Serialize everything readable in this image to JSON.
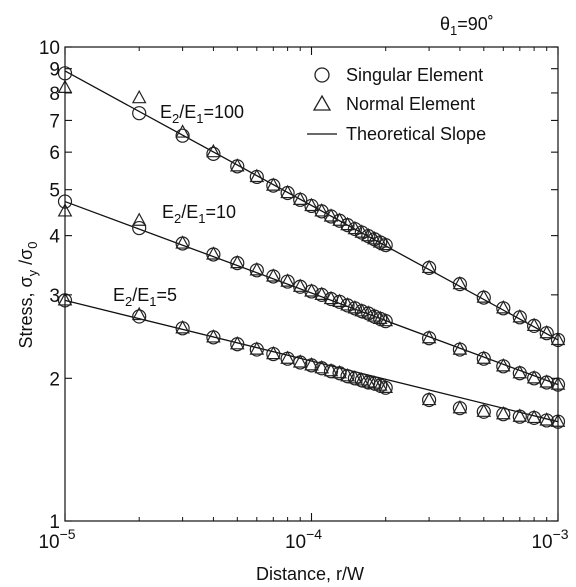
{
  "chart_data": {
    "type": "scatter",
    "title": "θ₁=90°",
    "title_parts": {
      "base": "θ",
      "sub": "1",
      "rest": "=90˚"
    },
    "xlabel": "Distance, r/W",
    "ylabel": "Stress, σ_y /σ_0",
    "ylabel_parts": {
      "pre": "Stress,  σ",
      "sub1": "y",
      "mid": " /σ",
      "sub2": "0"
    },
    "x_scale": "log",
    "y_scale": "log",
    "xlim": [
      1e-05,
      0.001
    ],
    "ylim": [
      1,
      10
    ],
    "x_ticks": [
      {
        "value": 1e-05,
        "base": "10",
        "exp": "−5"
      },
      {
        "value": 0.0001,
        "base": "10",
        "exp": "−4"
      },
      {
        "value": 0.001,
        "base": "10",
        "exp": "−3"
      }
    ],
    "y_ticks": [
      {
        "value": 1,
        "label": "1"
      },
      {
        "value": 2,
        "label": "2"
      },
      {
        "value": 3,
        "label": "3"
      },
      {
        "value": 4,
        "label": "4"
      },
      {
        "value": 5,
        "label": "5"
      },
      {
        "value": 6,
        "label": "6"
      },
      {
        "value": 7,
        "label": "7"
      },
      {
        "value": 8,
        "label": "8"
      },
      {
        "value": 9,
        "label": "9"
      },
      {
        "value": 10,
        "label": "10"
      }
    ],
    "grid": false,
    "legend": {
      "placement": "top-right",
      "entries": [
        {
          "marker": "circle",
          "label": "Singular Element"
        },
        {
          "marker": "triangle",
          "label": "Normal Element"
        },
        {
          "marker": "line",
          "label": "Theoretical Slope"
        }
      ]
    },
    "x": [
      1e-05,
      2e-05,
      3e-05,
      4e-05,
      5e-05,
      6e-05,
      7e-05,
      8e-05,
      9e-05,
      0.0001,
      0.00011,
      0.00012,
      0.00013,
      0.00014,
      0.00015,
      0.00016,
      0.00017,
      0.00018,
      0.00019,
      0.0002,
      0.0003,
      0.0004,
      0.0005,
      0.0006,
      0.0007,
      0.0008,
      0.0009,
      0.001
    ],
    "groups": [
      {
        "label_parts": {
          "a": "E",
          "asub": "2",
          "mid": "/E",
          "bsub": "1",
          "rest": "=100"
        },
        "line": {
          "x": [
            1e-05,
            0.001
          ],
          "y": [
            8.9,
            2.41
          ]
        },
        "singular": [
          8.8,
          7.25,
          6.5,
          5.95,
          5.6,
          5.32,
          5.1,
          4.92,
          4.76,
          4.62,
          4.5,
          4.39,
          4.3,
          4.21,
          4.13,
          4.06,
          3.99,
          3.93,
          3.87,
          3.82,
          3.42,
          3.16,
          2.96,
          2.81,
          2.69,
          2.58,
          2.49,
          2.41
        ],
        "normal": [
          8.2,
          7.8,
          6.6,
          6.0,
          5.6,
          5.32,
          5.1,
          4.92,
          4.76,
          4.62,
          4.5,
          4.39,
          4.3,
          4.21,
          4.13,
          4.06,
          3.99,
          3.93,
          3.87,
          3.82,
          3.42,
          3.16,
          2.96,
          2.81,
          2.69,
          2.58,
          2.49,
          2.41
        ]
      },
      {
        "label_parts": {
          "a": "E",
          "asub": "2",
          "mid": "/E",
          "bsub": "1",
          "rest": "=10"
        },
        "line": {
          "x": [
            1e-05,
            0.001
          ],
          "y": [
            4.72,
            1.94
          ]
        },
        "singular": [
          4.72,
          4.15,
          3.85,
          3.65,
          3.5,
          3.38,
          3.28,
          3.2,
          3.12,
          3.05,
          3.0,
          2.94,
          2.9,
          2.85,
          2.81,
          2.77,
          2.74,
          2.7,
          2.67,
          2.64,
          2.43,
          2.3,
          2.2,
          2.12,
          2.05,
          2.0,
          1.96,
          1.94
        ],
        "normal": [
          4.5,
          4.3,
          3.85,
          3.65,
          3.5,
          3.38,
          3.28,
          3.2,
          3.12,
          3.05,
          3.0,
          2.94,
          2.9,
          2.85,
          2.81,
          2.77,
          2.74,
          2.7,
          2.67,
          2.64,
          2.43,
          2.3,
          2.2,
          2.12,
          2.05,
          2.0,
          1.96,
          1.94
        ]
      },
      {
        "label_parts": {
          "a": "E",
          "asub": "2",
          "mid": "/E",
          "bsub": "1",
          "rest": "=5"
        },
        "line": {
          "x": [
            1e-05,
            0.001
          ],
          "y": [
            2.92,
            1.62
          ]
        },
        "singular": [
          2.92,
          2.7,
          2.55,
          2.44,
          2.36,
          2.3,
          2.25,
          2.2,
          2.16,
          2.13,
          2.1,
          2.07,
          2.05,
          2.02,
          2.0,
          1.98,
          1.96,
          1.95,
          1.93,
          1.91,
          1.8,
          1.73,
          1.7,
          1.68,
          1.66,
          1.65,
          1.63,
          1.62
        ],
        "normal": [
          2.92,
          2.72,
          2.55,
          2.44,
          2.36,
          2.3,
          2.25,
          2.2,
          2.16,
          2.13,
          2.1,
          2.07,
          2.05,
          2.02,
          2.0,
          1.98,
          1.96,
          1.95,
          1.93,
          1.91,
          1.8,
          1.73,
          1.7,
          1.68,
          1.66,
          1.65,
          1.63,
          1.62
        ]
      }
    ]
  }
}
